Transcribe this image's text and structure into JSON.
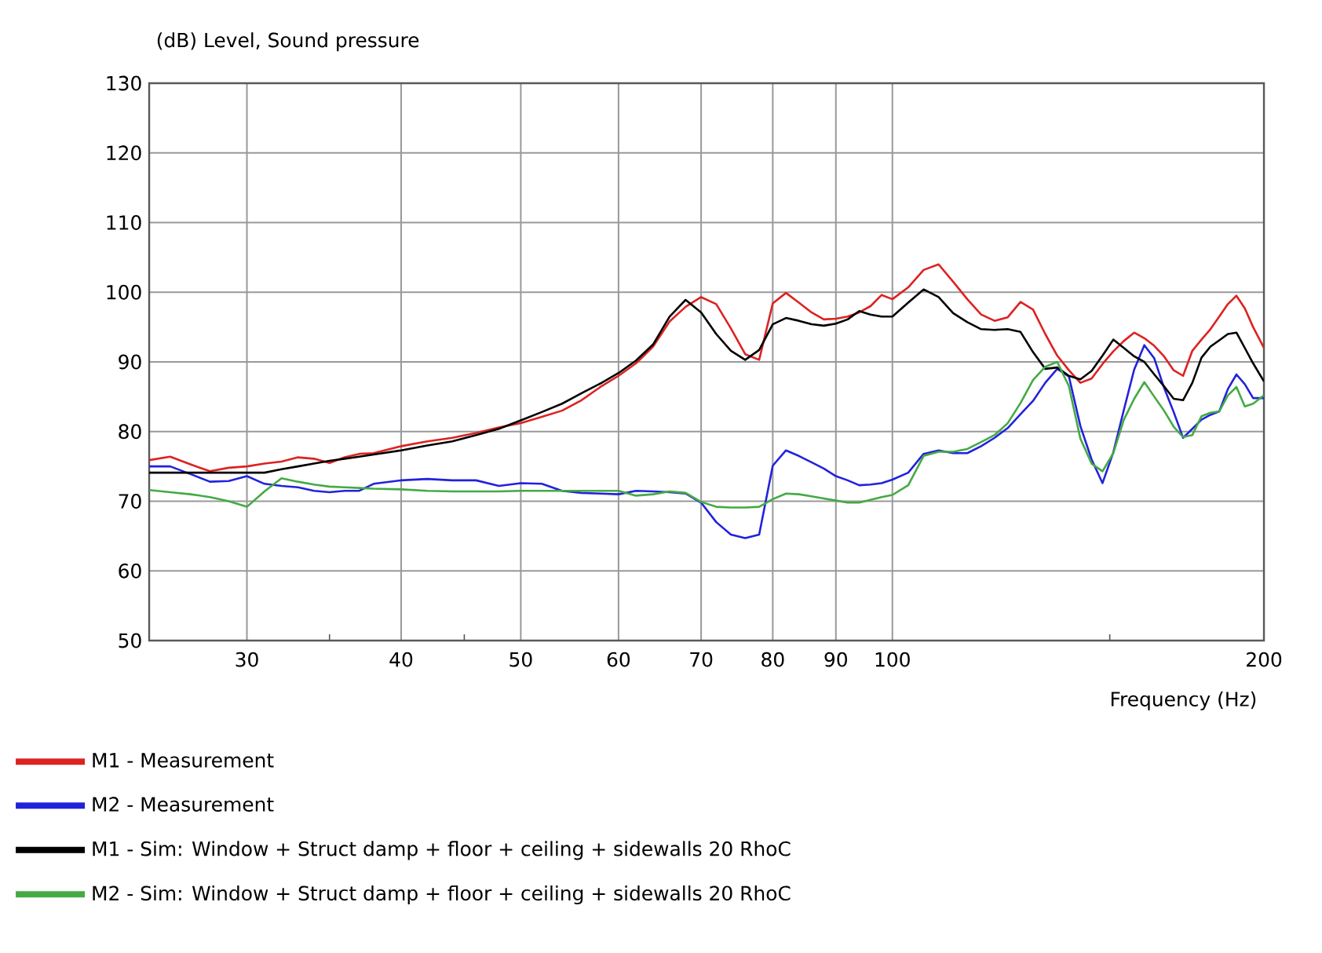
{
  "chart_data": {
    "type": "line",
    "ylabel": "(dB)  Level, Sound pressure",
    "xlabel": "Frequency  (Hz)",
    "log": "x",
    "grid": true,
    "legend": "bottom",
    "marker": "none",
    "line_style": "solid",
    "xlim": [
      25,
      200
    ],
    "xticks": [
      30,
      {
        "value": 35,
        "label": null
      },
      40,
      {
        "value": 45,
        "label": null
      },
      50,
      60,
      70,
      80,
      90,
      100,
      {
        "value": 150,
        "label": null
      },
      200
    ],
    "ylim": [
      50,
      130
    ],
    "yticks": [
      50,
      60,
      70,
      80,
      90,
      100,
      110,
      120,
      130
    ],
    "x": [
      25,
      26,
      27,
      28,
      29,
      30,
      31,
      32,
      33,
      34,
      35,
      36,
      37,
      38,
      40,
      42,
      44,
      46,
      48,
      50,
      52,
      54,
      56,
      58,
      60,
      62,
      64,
      66,
      68,
      70,
      72,
      74,
      76,
      78,
      80,
      82,
      84,
      86,
      88,
      90,
      92,
      94,
      96,
      98,
      100,
      103,
      106,
      109,
      112,
      115,
      118,
      121,
      124,
      127,
      130,
      133,
      136,
      139,
      142,
      145,
      148,
      151,
      154,
      157,
      160,
      163,
      166,
      169,
      172,
      175,
      178,
      181,
      184,
      187,
      190,
      193,
      196,
      200
    ],
    "series": [
      {
        "name": "M1 - Measurement",
        "color": "#dd2222",
        "values": [
          75.9,
          76.4,
          75.3,
          74.3,
          74.8,
          75,
          75.4,
          75.7,
          76.3,
          76.1,
          75.5,
          76.3,
          76.8,
          76.9,
          77.9,
          78.6,
          79.1,
          79.8,
          80.6,
          81.2,
          82.1,
          83,
          84.5,
          86.4,
          88,
          89.8,
          92.2,
          95.8,
          97.9,
          99.3,
          98.3,
          94.8,
          91.1,
          90.3,
          98.4,
          99.9,
          98.5,
          97.1,
          96.1,
          96.2,
          96.5,
          97.1,
          98,
          99.6,
          99,
          100.7,
          103.2,
          104,
          101.5,
          99,
          96.8,
          95.9,
          96.4,
          98.6,
          97.5,
          94,
          90.9,
          88.8,
          87,
          87.6,
          89.7,
          91.5,
          93,
          94.2,
          93.4,
          92.3,
          90.8,
          88.8,
          88,
          91.6,
          93.2,
          94.7,
          96.5,
          98.3,
          99.5,
          97.7,
          95,
          92
        ]
      },
      {
        "name": "M2 - Measurement",
        "color": "#2222dd",
        "values": [
          75,
          75,
          73.9,
          72.8,
          72.9,
          73.6,
          72.5,
          72.2,
          72,
          71.5,
          71.3,
          71.5,
          71.5,
          72.5,
          73,
          73.2,
          73,
          73,
          72.2,
          72.6,
          72.5,
          71.5,
          71.2,
          71.1,
          71,
          71.5,
          71.4,
          71.3,
          71.1,
          69.8,
          67,
          65.2,
          64.7,
          65.2,
          75.1,
          77.3,
          76.5,
          75.6,
          74.7,
          73.6,
          73,
          72.3,
          72.4,
          72.6,
          73.1,
          74.1,
          76.8,
          77.3,
          76.9,
          76.9,
          77.9,
          79.1,
          80.5,
          82.5,
          84.4,
          87,
          89,
          87.9,
          80.8,
          76,
          72.6,
          77,
          83.1,
          88.9,
          92.4,
          90.5,
          86.3,
          82.8,
          79.1,
          80.4,
          81.7,
          82.4,
          82.9,
          86.1,
          88.2,
          86.8,
          84.8,
          84.8
        ]
      },
      {
        "name": "M1 - Sim: Window + Struct damp + floor + ceiling + sidewalls 20 RhoC",
        "color": "#000000",
        "values": [
          74.1,
          74.1,
          74.1,
          74.1,
          74.1,
          74.1,
          74.1,
          74.6,
          75,
          75.4,
          75.8,
          76.1,
          76.4,
          76.7,
          77.3,
          78,
          78.6,
          79.5,
          80.4,
          81.6,
          82.8,
          84,
          85.5,
          86.9,
          88.4,
          90.2,
          92.5,
          96.5,
          98.9,
          97.1,
          94,
          91.6,
          90.3,
          91.7,
          95.4,
          96.3,
          95.9,
          95.4,
          95.2,
          95.5,
          96.1,
          97.3,
          96.8,
          96.5,
          96.5,
          98.5,
          100.4,
          99.3,
          97,
          95.7,
          94.7,
          94.6,
          94.7,
          94.3,
          91.4,
          89,
          89.2,
          88,
          87.5,
          88.7,
          90.9,
          93.2,
          92,
          90.8,
          90,
          88.2,
          86.5,
          84.7,
          84.5,
          87,
          90.6,
          92.2,
          93.1,
          94,
          94.2,
          92,
          89.8,
          87.2
        ]
      },
      {
        "name": "M2 - Sim: Window + Struct damp + floor + ceiling + sidewalls 20 RhoC",
        "color": "#44aa44",
        "values": [
          71.6,
          71.3,
          71,
          70.6,
          70,
          69.2,
          71.4,
          73.3,
          72.8,
          72.4,
          72.1,
          72,
          71.9,
          71.8,
          71.7,
          71.5,
          71.4,
          71.4,
          71.4,
          71.5,
          71.5,
          71.5,
          71.5,
          71.5,
          71.5,
          70.8,
          71,
          71.4,
          71.2,
          69.9,
          69.2,
          69.1,
          69.1,
          69.2,
          70.3,
          71.1,
          71,
          70.7,
          70.4,
          70.1,
          69.8,
          69.8,
          70.2,
          70.6,
          70.9,
          72.3,
          76.5,
          77.1,
          77.1,
          77.5,
          78.5,
          79.5,
          81.2,
          84.1,
          87.4,
          89.3,
          90,
          86.5,
          79,
          75.4,
          74.3,
          76.9,
          81.7,
          84.7,
          87.1,
          85,
          83,
          80.7,
          79.2,
          79.5,
          82.2,
          82.7,
          82.9,
          85.2,
          86.4,
          83.6,
          84,
          85.2
        ]
      }
    ]
  }
}
